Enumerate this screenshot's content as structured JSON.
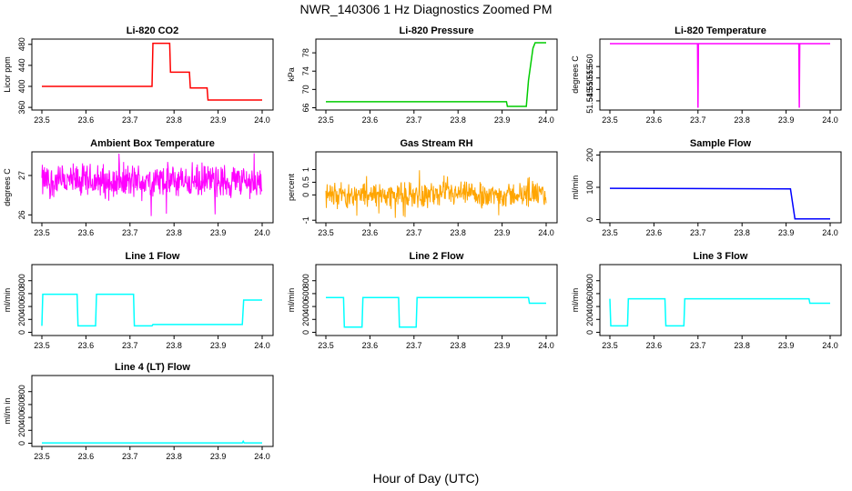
{
  "figure": {
    "title": "NWR_140306  1 Hz Diagnostics Zoomed PM",
    "xlabel": "Hour of Day (UTC)"
  },
  "chart_data": [
    {
      "type": "line",
      "title": "Li-820 CO2",
      "ylabel": "Licor ppm",
      "color": "#ff0000",
      "xlim": [
        23.5,
        24.0
      ],
      "ylim": [
        355,
        490
      ],
      "xticks": [
        "23.5",
        "23.6",
        "23.7",
        "23.8",
        "23.9",
        "24.0"
      ],
      "yticks": [
        360,
        400,
        440,
        480
      ],
      "series": [
        {
          "x": [
            23.5,
            23.75,
            23.752,
            23.79,
            23.792,
            23.835,
            23.837,
            23.875,
            23.877,
            24.0
          ],
          "y": [
            400,
            400,
            482,
            482,
            427,
            427,
            397,
            397,
            374,
            374
          ]
        }
      ]
    },
    {
      "type": "line",
      "title": "Li-820 Pressure",
      "ylabel": "kPa",
      "color": "#00cc00",
      "xlim": [
        23.5,
        24.0
      ],
      "ylim": [
        65.5,
        81
      ],
      "xticks": [
        "23.5",
        "23.6",
        "23.7",
        "23.8",
        "23.9",
        "24.0"
      ],
      "yticks": [
        66,
        70,
        74,
        78
      ],
      "series": [
        {
          "x": [
            23.5,
            23.91,
            23.912,
            23.955,
            23.96,
            23.97,
            23.975,
            24.0
          ],
          "y": [
            67.3,
            67.3,
            66.3,
            66.3,
            72,
            79,
            80.2,
            80.2
          ]
        }
      ]
    },
    {
      "type": "line",
      "title": "Li-820 Temperature",
      "ylabel": "degrees C",
      "color": "#ff00ff",
      "xlim": [
        23.5,
        24.0
      ],
      "ylim": [
        51.541,
        51.572
      ],
      "xticks": [
        "23.5",
        "23.6",
        "23.7",
        "23.8",
        "23.9",
        "24.0"
      ],
      "yticks": [
        "51.545",
        "51.550",
        "51.555",
        "51.560"
      ],
      "series": [
        {
          "x": [
            23.5,
            23.699,
            23.7,
            23.701,
            23.929,
            23.93,
            23.931,
            24.0
          ],
          "y": [
            51.57,
            51.57,
            51.542,
            51.57,
            51.57,
            51.542,
            51.57,
            51.57
          ]
        }
      ]
    },
    {
      "type": "line",
      "title": "Ambient Box Temperature",
      "ylabel": "degrees C",
      "color": "#ff00ff",
      "xlim": [
        23.5,
        24.0
      ],
      "ylim": [
        25.8,
        27.6
      ],
      "xticks": [
        "23.5",
        "23.6",
        "23.7",
        "23.8",
        "23.9",
        "24.0"
      ],
      "yticks": [
        26.0,
        27.0
      ],
      "series": [
        {
          "x": [
            23.5,
            24.0
          ],
          "y": [
            26.8,
            26.8
          ]
        }
      ],
      "noise": {
        "center": 26.85,
        "spread": 0.45
      }
    },
    {
      "type": "line",
      "title": "Gas Stream RH",
      "ylabel": "percent",
      "color": "#ffa500",
      "xlim": [
        23.5,
        24.0
      ],
      "ylim": [
        -1.1,
        1.7
      ],
      "xticks": [
        "23.5",
        "23.6",
        "23.7",
        "23.8",
        "23.9",
        "24.0"
      ],
      "yticks": [
        -1.0,
        0.0,
        0.5,
        1.0
      ],
      "series": [
        {
          "x": [
            23.5,
            24.0
          ],
          "y": [
            0.0,
            0.0
          ]
        }
      ],
      "noise": {
        "center": 0.0,
        "spread": 0.5
      }
    },
    {
      "type": "line",
      "title": "Sample Flow",
      "ylabel": "ml/min",
      "color": "#0000ff",
      "xlim": [
        23.5,
        24.0
      ],
      "ylim": [
        -10,
        210
      ],
      "xticks": [
        "23.5",
        "23.6",
        "23.7",
        "23.8",
        "23.9",
        "24.0"
      ],
      "yticks": [
        0,
        100,
        200
      ],
      "series": [
        {
          "x": [
            23.5,
            23.91,
            23.92,
            24.0
          ],
          "y": [
            97,
            95,
            2,
            2
          ]
        }
      ]
    },
    {
      "type": "line",
      "title": "Line 1 Flow",
      "ylabel": "ml/min",
      "color": "#00ffff",
      "xlim": [
        23.5,
        24.0
      ],
      "ylim": [
        -50,
        1050
      ],
      "xticks": [
        "23.5",
        "23.6",
        "23.7",
        "23.8",
        "23.9",
        "24.0"
      ],
      "yticks": [
        0,
        200,
        400,
        600,
        800
      ],
      "series": [
        {
          "x": [
            23.5,
            23.502,
            23.58,
            23.582,
            23.622,
            23.624,
            23.708,
            23.71,
            23.75,
            23.752,
            23.955,
            23.958,
            24.0
          ],
          "y": [
            100,
            590,
            590,
            100,
            100,
            590,
            590,
            100,
            100,
            120,
            120,
            500,
            500
          ]
        }
      ]
    },
    {
      "type": "line",
      "title": "Line 2 Flow",
      "ylabel": "ml/min",
      "color": "#00ffff",
      "xlim": [
        23.5,
        24.0
      ],
      "ylim": [
        -50,
        1050
      ],
      "xticks": [
        "23.5",
        "23.6",
        "23.7",
        "23.8",
        "23.9",
        "24.0"
      ],
      "yticks": [
        0,
        200,
        400,
        600,
        800
      ],
      "series": [
        {
          "x": [
            23.5,
            23.54,
            23.542,
            23.582,
            23.584,
            23.665,
            23.667,
            23.705,
            23.707,
            23.96,
            23.962,
            24.0
          ],
          "y": [
            540,
            540,
            80,
            80,
            540,
            540,
            80,
            80,
            540,
            540,
            450,
            450
          ]
        }
      ]
    },
    {
      "type": "line",
      "title": "Line 3 Flow",
      "ylabel": "ml/min",
      "color": "#00ffff",
      "xlim": [
        23.5,
        24.0
      ],
      "ylim": [
        -50,
        1050
      ],
      "xticks": [
        "23.5",
        "23.6",
        "23.7",
        "23.8",
        "23.9",
        "24.0"
      ],
      "yticks": [
        0,
        200,
        400,
        600,
        800
      ],
      "series": [
        {
          "x": [
            23.5,
            23.502,
            23.54,
            23.542,
            23.625,
            23.627,
            23.668,
            23.67,
            23.952,
            23.954,
            24.0
          ],
          "y": [
            520,
            100,
            100,
            520,
            520,
            100,
            100,
            520,
            520,
            450,
            450
          ]
        }
      ]
    },
    {
      "type": "line",
      "title": "Line 4 (LT) Flow",
      "ylabel": "ml/m in",
      "color": "#00ffff",
      "xlim": [
        23.5,
        24.0
      ],
      "ylim": [
        -50,
        1050
      ],
      "xticks": [
        "23.5",
        "23.6",
        "23.7",
        "23.8",
        "23.9",
        "24.0"
      ],
      "yticks": [
        0,
        200,
        400,
        600,
        800
      ],
      "series": [
        {
          "x": [
            23.5,
            23.955,
            23.957,
            23.959,
            24.0
          ],
          "y": [
            5,
            5,
            30,
            5,
            5
          ]
        }
      ]
    }
  ]
}
